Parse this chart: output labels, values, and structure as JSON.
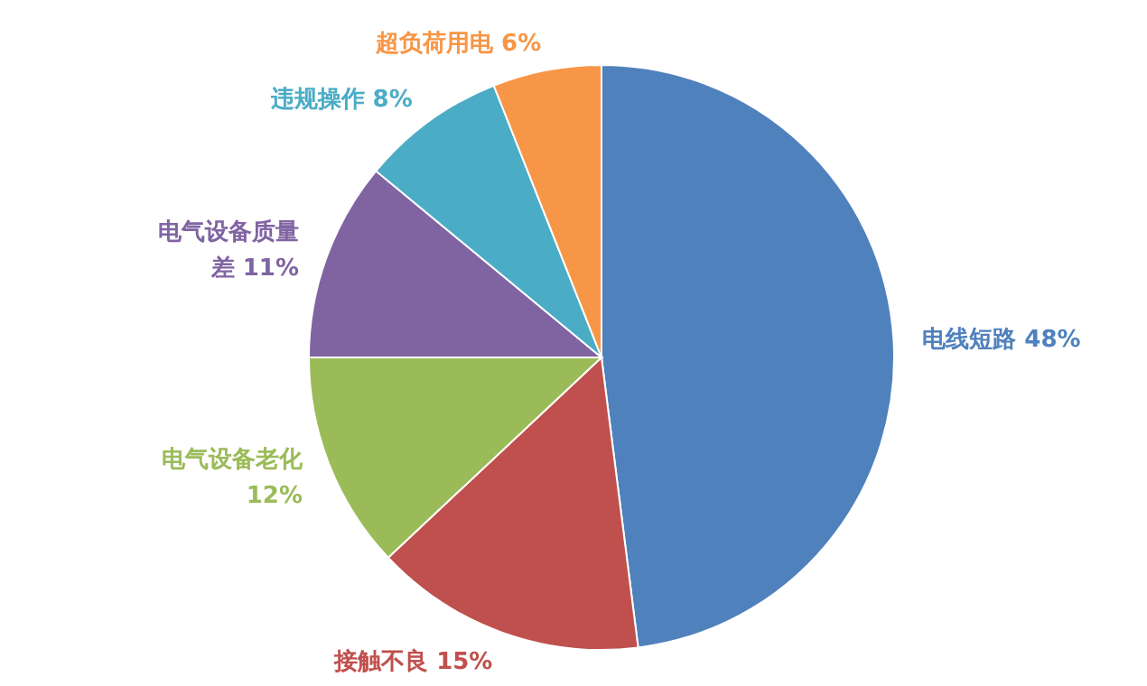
{
  "chart_data": {
    "type": "pie",
    "categories": [
      "电线短路",
      "接触不良",
      "电气设备老化",
      "电气设备质量差",
      "违规操作",
      "超负荷用电"
    ],
    "values": [
      48,
      15,
      12,
      11,
      8,
      6
    ],
    "value_labels": [
      "48%",
      "15%",
      "12%",
      "11%",
      "8%",
      "6%"
    ],
    "colors": [
      "#4f81bd",
      "#c0504d",
      "#9bbb59",
      "#8064a2",
      "#4bacc6",
      "#f79646"
    ]
  }
}
